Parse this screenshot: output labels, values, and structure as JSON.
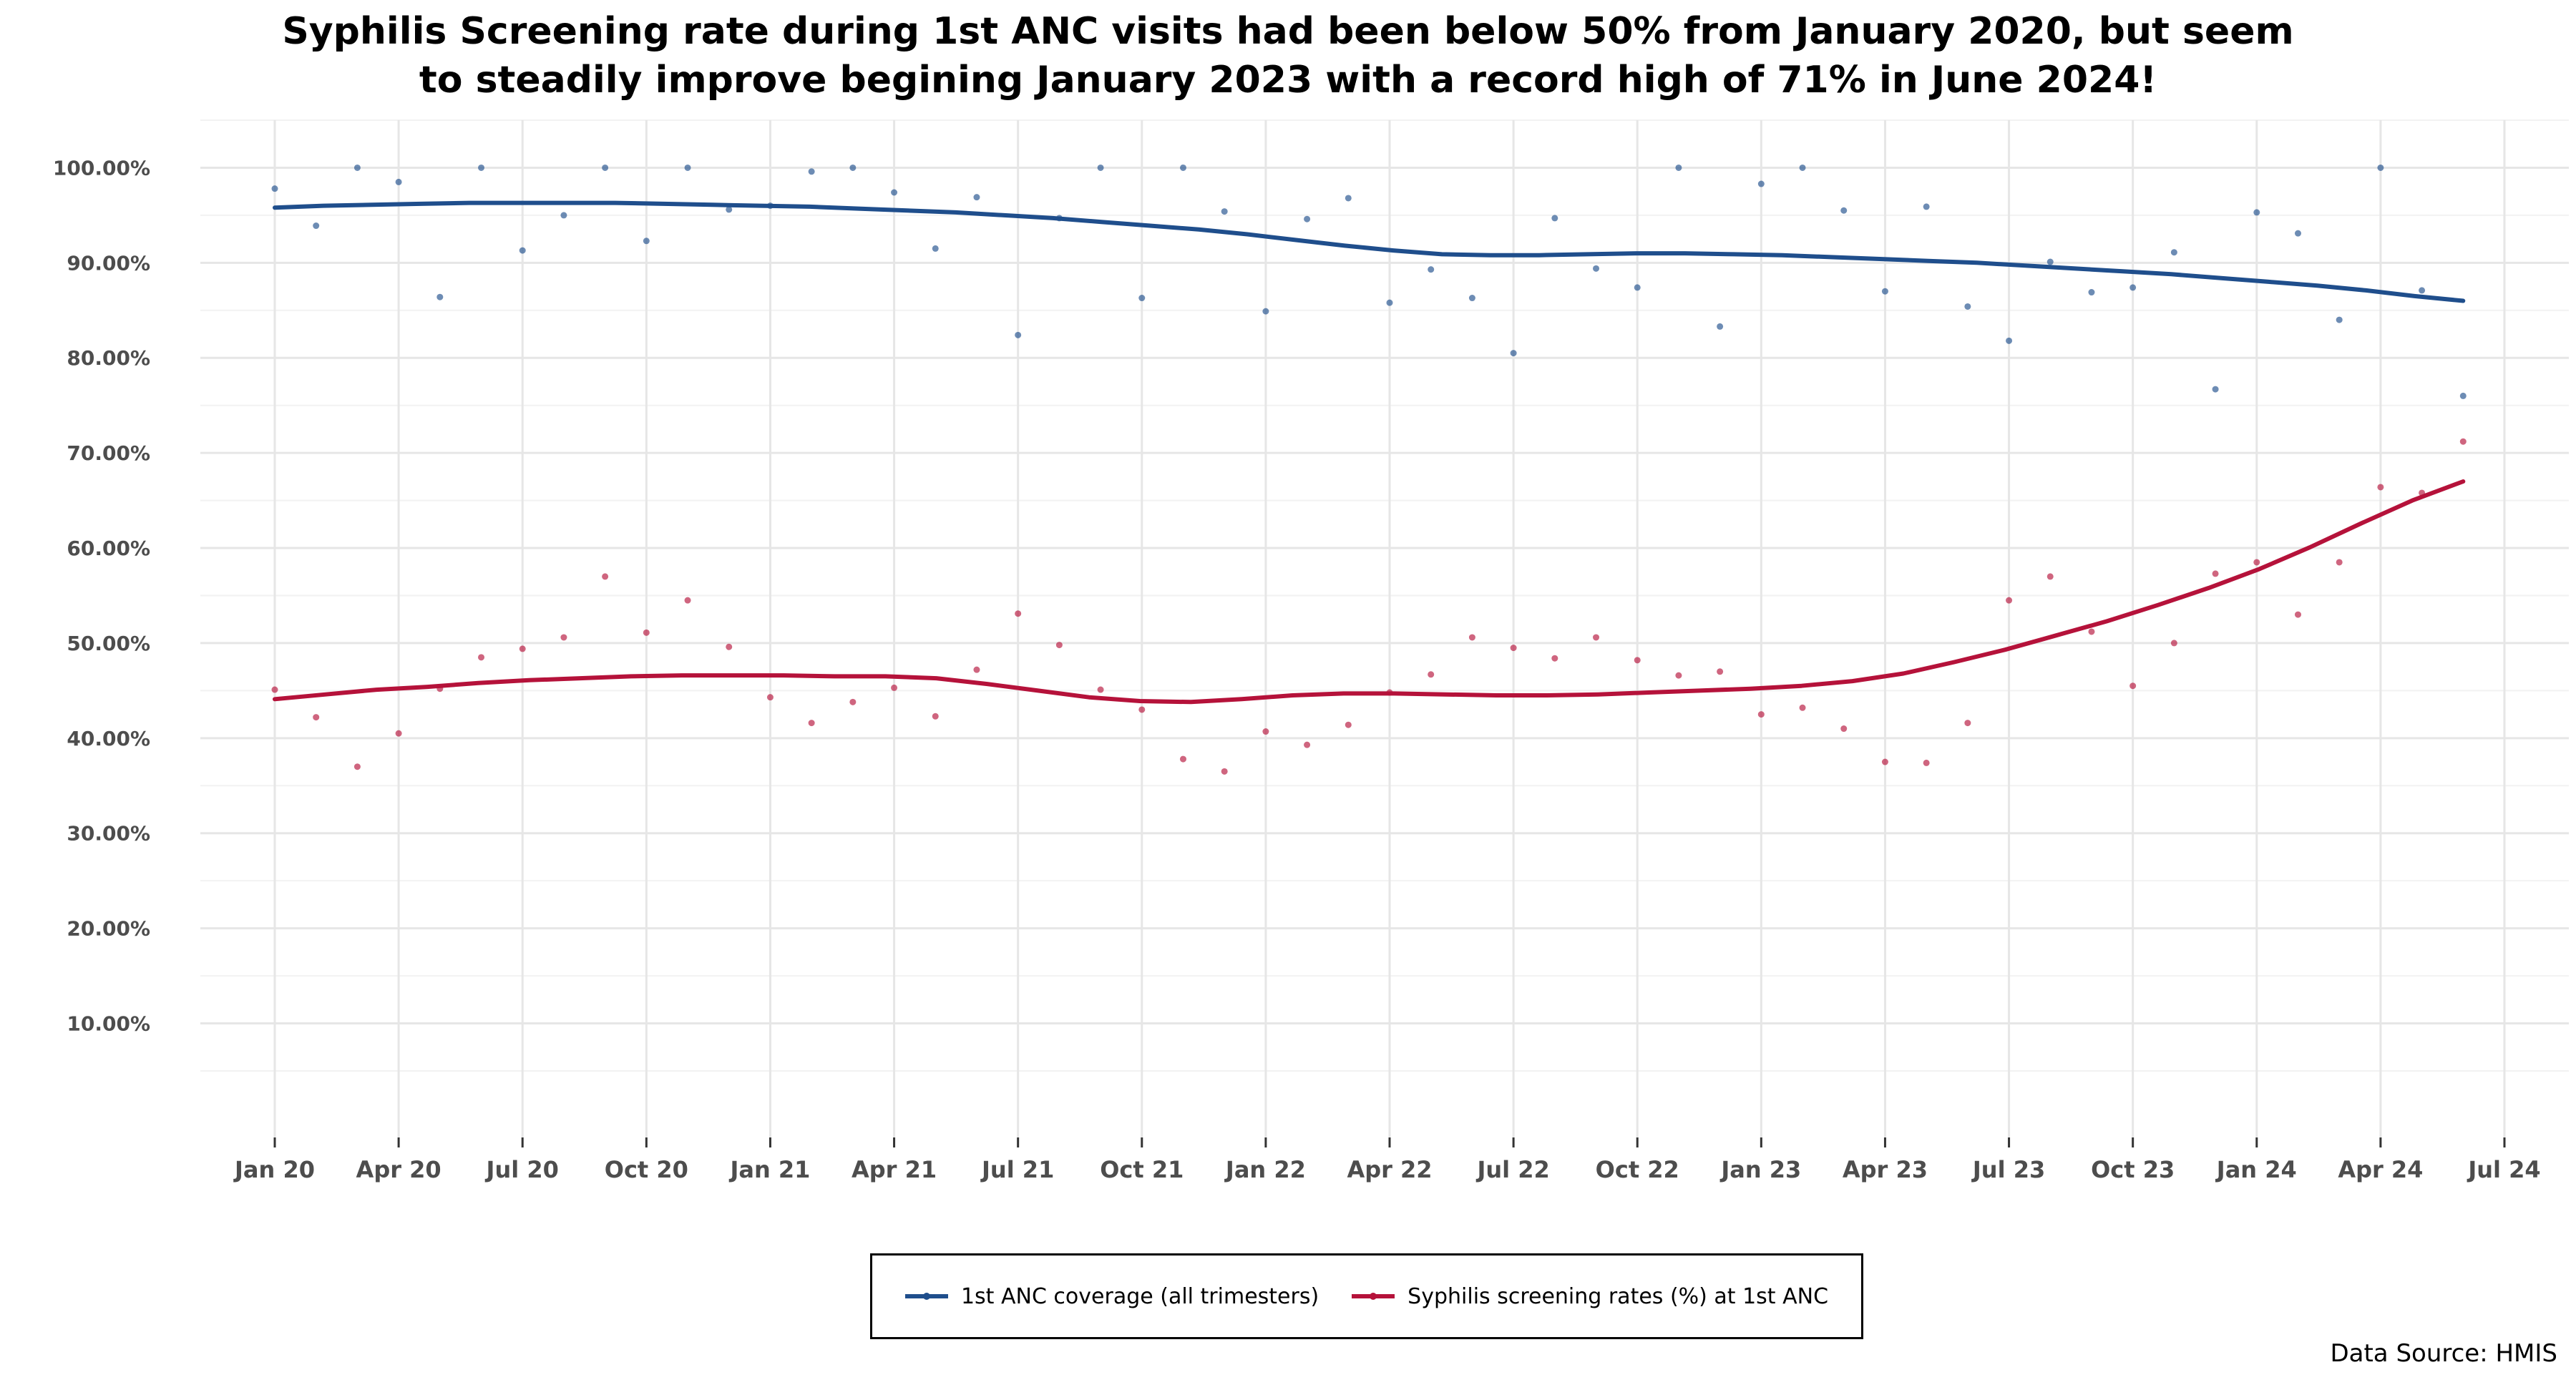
{
  "title_line1": "Syphilis Screening rate during 1st ANC visits had been below 50% from January 2020, but seem",
  "title_line2": "to steadily improve begining January 2023 with a record high of 71% in June 2024!",
  "source_text": "Data Source: HMIS",
  "legend": [
    {
      "label": "1st ANC coverage (all trimesters)",
      "color": "#1f4e8c"
    },
    {
      "label": "Syphilis screening rates (%) at 1st ANC",
      "color": "#b5123a"
    }
  ],
  "chart_data": {
    "type": "scatter",
    "title": "Syphilis Screening rate during 1st ANC visits had been below 50% from January 2020, but seem to steadily improve begining January 2023 with a record high of 71% in June 2024!",
    "xlabel": "",
    "ylabel": "",
    "x_tick_labels": [
      "Jan 20",
      "Apr 20",
      "Jul 20",
      "Oct 20",
      "Jan 21",
      "Apr 21",
      "Jul 21",
      "Oct 21",
      "Jan 22",
      "Apr 22",
      "Jul 22",
      "Oct 22",
      "Jan 23",
      "Apr 23",
      "Jul 23",
      "Oct 23",
      "Jan 24",
      "Apr 24",
      "Jul 24"
    ],
    "x_tick_months": [
      0,
      3,
      6,
      9,
      12,
      15,
      18,
      21,
      24,
      27,
      30,
      33,
      36,
      39,
      42,
      45,
      48,
      51,
      54
    ],
    "y_tick_labels": [
      "10.00%",
      "20.00%",
      "30.00%",
      "40.00%",
      "50.00%",
      "60.00%",
      "70.00%",
      "80.00%",
      "90.00%",
      "100.00%"
    ],
    "y_ticks": [
      10,
      20,
      30,
      40,
      50,
      60,
      70,
      80,
      90,
      100
    ],
    "xlim": [
      "2020-01",
      "2024-07"
    ],
    "ylim": [
      -2,
      105
    ],
    "grid": true,
    "legend_position": "bottom",
    "x": [
      "2020-01",
      "2020-02",
      "2020-03",
      "2020-04",
      "2020-05",
      "2020-06",
      "2020-07",
      "2020-08",
      "2020-09",
      "2020-10",
      "2020-11",
      "2020-12",
      "2021-01",
      "2021-02",
      "2021-03",
      "2021-04",
      "2021-05",
      "2021-06",
      "2021-07",
      "2021-08",
      "2021-09",
      "2021-10",
      "2021-11",
      "2021-12",
      "2022-01",
      "2022-02",
      "2022-03",
      "2022-04",
      "2022-05",
      "2022-06",
      "2022-07",
      "2022-08",
      "2022-09",
      "2022-10",
      "2022-11",
      "2022-12",
      "2023-01",
      "2023-02",
      "2023-03",
      "2023-04",
      "2023-05",
      "2023-06",
      "2023-07",
      "2023-08",
      "2023-09",
      "2023-10",
      "2023-11",
      "2023-12",
      "2024-01",
      "2024-02",
      "2024-03",
      "2024-04",
      "2024-05",
      "2024-06"
    ],
    "series": [
      {
        "name": "1st ANC coverage (all trimesters)",
        "color": "#1f4e8c",
        "values": [
          97.8,
          93.9,
          100,
          98.5,
          86.4,
          100,
          91.3,
          95,
          100,
          92.3,
          100,
          95.6,
          96,
          99.6,
          100,
          97.4,
          91.5,
          96.9,
          82.4,
          94.7,
          100,
          86.3,
          100,
          95.4,
          84.9,
          94.6,
          96.8,
          85.8,
          89.3,
          86.3,
          80.5,
          94.7,
          89.4,
          87.4,
          100,
          83.3,
          98.3,
          100,
          95.5,
          87,
          95.9,
          85.4,
          81.8,
          90.1,
          86.9,
          87.4,
          91.1,
          76.7,
          95.3,
          93.1,
          84,
          100,
          87.1,
          76
        ],
        "trend": [
          95.8,
          96.0,
          96.1,
          96.2,
          96.3,
          96.3,
          96.3,
          96.3,
          96.2,
          96.1,
          96.0,
          95.9,
          95.7,
          95.5,
          95.3,
          95.0,
          94.7,
          94.3,
          93.9,
          93.5,
          93.0,
          92.4,
          91.8,
          91.3,
          90.9,
          90.8,
          90.8,
          90.9,
          91.0,
          91.0,
          90.9,
          90.8,
          90.6,
          90.4,
          90.2,
          90.0,
          89.7,
          89.4,
          89.1,
          88.8,
          88.4,
          88.0,
          87.6,
          87.1,
          86.5,
          86.0
        ]
      },
      {
        "name": "Syphilis screening rates (%) at 1st ANC",
        "color": "#b5123a",
        "values": [
          45.1,
          42.2,
          37,
          40.5,
          45.2,
          48.5,
          49.4,
          50.6,
          57,
          51.1,
          54.5,
          49.6,
          44.3,
          41.6,
          43.8,
          45.3,
          42.3,
          47.2,
          53.1,
          49.8,
          45.1,
          43,
          37.8,
          36.5,
          40.7,
          39.3,
          41.4,
          44.8,
          46.7,
          50.6,
          49.5,
          48.4,
          50.6,
          48.2,
          46.6,
          47,
          42.5,
          43.2,
          41,
          37.5,
          37.4,
          41.6,
          54.5,
          57,
          51.2,
          45.5,
          50,
          57.3,
          58.5,
          53,
          58.5,
          66.4,
          65.8,
          71.2
        ],
        "trend": [
          44.1,
          44.6,
          45.1,
          45.4,
          45.8,
          46.1,
          46.3,
          46.5,
          46.6,
          46.6,
          46.6,
          46.5,
          46.5,
          46.3,
          45.7,
          45.0,
          44.3,
          43.9,
          43.8,
          44.1,
          44.5,
          44.7,
          44.7,
          44.6,
          44.5,
          44.5,
          44.6,
          44.8,
          45.0,
          45.2,
          45.5,
          46.0,
          46.8,
          48.0,
          49.3,
          50.8,
          52.3,
          54.0,
          55.8,
          57.8,
          60.1,
          62.6,
          65.0,
          67.0
        ]
      }
    ]
  }
}
